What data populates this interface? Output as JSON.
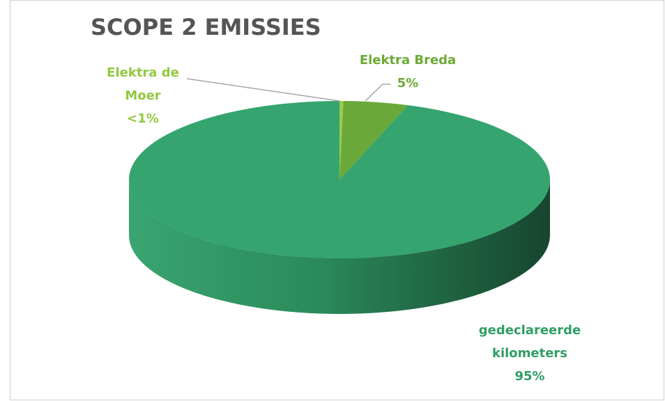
{
  "chart_data": {
    "type": "pie",
    "title": "SCOPE 2 EMISSIES",
    "categories": [
      "Elektra de Moer",
      "Elektra Breda",
      "gedeclareerde kilometers"
    ],
    "values": [
      0.3,
      5,
      95
    ],
    "value_labels": [
      "<1%",
      "5%",
      "95%"
    ],
    "colors": [
      "#9ccc4a",
      "#6aa83a",
      "#35a46f"
    ]
  }
}
